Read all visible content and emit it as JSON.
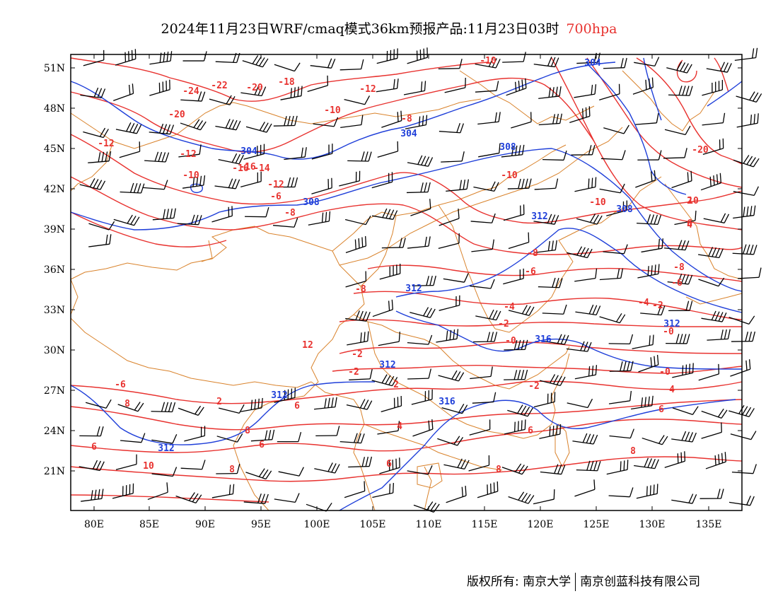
{
  "title": {
    "text": "2024年11月23日WRF/cmaq模式36km预报产品:11月23日03时",
    "level": "700hpa"
  },
  "axes": {
    "lat_labels": [
      "51N",
      "48N",
      "45N",
      "42N",
      "39N",
      "36N",
      "33N",
      "30N",
      "27N",
      "24N",
      "21N"
    ],
    "lon_labels": [
      "80E",
      "85E",
      "90E",
      "95E",
      "100E",
      "105E",
      "110E",
      "115E",
      "120E",
      "125E",
      "130E",
      "135E"
    ]
  },
  "colors": {
    "temperature_contour": "#e8322f",
    "height_contour": "#1f3fd9",
    "border": "#d9822b",
    "wind_barb": "#000000"
  },
  "temperature_labels": [
    "-24",
    "-22",
    "-20",
    "-18",
    "-20",
    "-16",
    "-14",
    "-12",
    "-12",
    "-10",
    "-10",
    "-8",
    "-8",
    "-6",
    "-12",
    "-10",
    "-10",
    "-8",
    "-6",
    "-8",
    "-6",
    "-4",
    "-2",
    "-0",
    "-2",
    "-2",
    "-4",
    "-2",
    "-0",
    "-8",
    "-6",
    "-10",
    "-12",
    "-20",
    "-2",
    "-0",
    "2",
    "2",
    "4",
    "6",
    "4",
    "6",
    "8",
    "6",
    "6",
    "8",
    "10",
    "8",
    "10",
    "6",
    "8",
    "6",
    "2",
    "4",
    "6",
    "8",
    "12",
    "-16"
  ],
  "height_labels": [
    "304",
    "304",
    "304",
    "308",
    "308",
    "308",
    "312",
    "312",
    "312",
    "312",
    "316",
    "316",
    "312",
    "312"
  ],
  "footer": {
    "left": "版权所有: 南京大学",
    "right": "南京创蓝科技有限公司"
  }
}
